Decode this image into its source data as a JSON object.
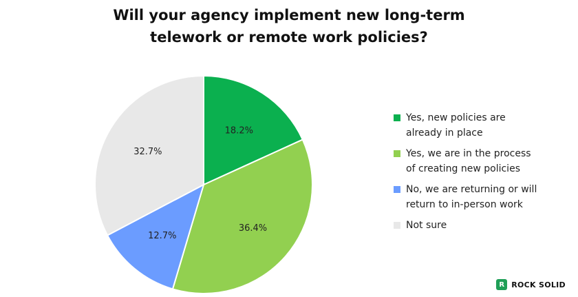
{
  "chart_data": {
    "type": "pie",
    "title_lines": [
      "Will your agency implement new long-term",
      "telework or remote work policies?"
    ],
    "slices": [
      {
        "label_lines": [
          "Yes, new policies are",
          "already in place"
        ],
        "value": 18.2,
        "value_label": "18.2%",
        "color": "#0bb04f"
      },
      {
        "label_lines": [
          "Yes, we are in the process",
          "of creating new policies"
        ],
        "value": 36.4,
        "value_label": "36.4%",
        "color": "#92d050"
      },
      {
        "label_lines": [
          "No, we are returning or will",
          "return to in-person work"
        ],
        "value": 12.7,
        "value_label": "12.7%",
        "color": "#6b9cff"
      },
      {
        "label_lines": [
          "Not sure"
        ],
        "value": 32.7,
        "value_label": "32.7%",
        "color": "#e8e8e8"
      }
    ],
    "legend_position": "right"
  },
  "brand": {
    "mark": "R",
    "name": "ROCK SOLID",
    "color": "#1f9f57"
  }
}
